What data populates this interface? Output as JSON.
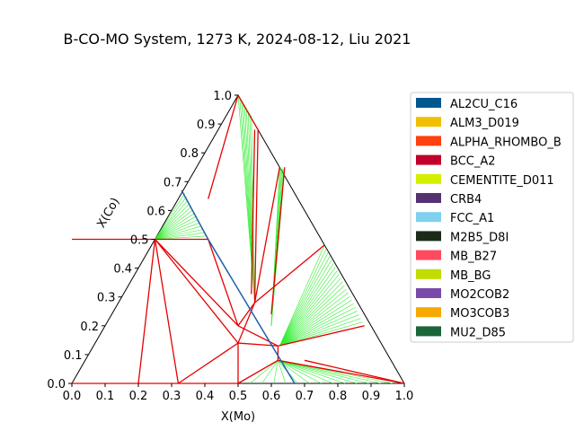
{
  "chart_data": {
    "type": "ternary",
    "title": "B-CO-MO System, 1273 K, 2024-08-12, Liu 2021",
    "xlabel": "X(Mo)",
    "ylabel": "X(Co)",
    "xlim": [
      0,
      1
    ],
    "ylim": [
      0,
      1
    ],
    "x_ticks": [
      "0.0",
      "0.1",
      "0.2",
      "0.3",
      "0.4",
      "0.5",
      "0.6",
      "0.7",
      "0.8",
      "0.9",
      "1.0"
    ],
    "y_ticks": [
      "0.0",
      "0.1",
      "0.2",
      "0.3",
      "0.4",
      "0.5",
      "0.6",
      "0.7",
      "0.8",
      "0.9",
      "1.0"
    ],
    "grid": false,
    "legend_position": "right",
    "legend": [
      {
        "name": "AL2CU_C16",
        "color": "#00568f"
      },
      {
        "name": "ALM3_D019",
        "color": "#f0c000"
      },
      {
        "name": "ALPHA_RHOMBO_B",
        "color": "#ff4010"
      },
      {
        "name": "BCC_A2",
        "color": "#c0002a"
      },
      {
        "name": "CEMENTITE_D011",
        "color": "#d4f000"
      },
      {
        "name": "CRB4",
        "color": "#543170"
      },
      {
        "name": "FCC_A1",
        "color": "#80d0f0"
      },
      {
        "name": "M2B5_D8I",
        "color": "#1c2b18"
      },
      {
        "name": "MB_B27",
        "color": "#ff4a60"
      },
      {
        "name": "MB_BG",
        "color": "#c0dc00"
      },
      {
        "name": "MO2COB2",
        "color": "#7a4aaa"
      },
      {
        "name": "MO3COB3",
        "color": "#f6a800"
      },
      {
        "name": "MU2_D85",
        "color": "#1a6638"
      }
    ],
    "phase_boundaries_red": [
      [
        [
          0.0,
          0.5
        ],
        [
          0.25,
          0.5
        ]
      ],
      [
        [
          0.25,
          0.5
        ],
        [
          0.2,
          0.0
        ]
      ],
      [
        [
          0.25,
          0.5
        ],
        [
          0.32,
          0.0
        ]
      ],
      [
        [
          0.25,
          0.5
        ],
        [
          0.5,
          0.14
        ]
      ],
      [
        [
          0.25,
          0.5
        ],
        [
          0.5,
          0.2
        ]
      ],
      [
        [
          0.25,
          0.5
        ],
        [
          0.41,
          0.5
        ]
      ],
      [
        [
          0.0,
          0.0
        ],
        [
          0.5,
          0.0
        ]
      ],
      [
        [
          0.5,
          0.0
        ],
        [
          0.5,
          0.14
        ]
      ],
      [
        [
          0.32,
          0.0
        ],
        [
          0.5,
          0.14
        ]
      ],
      [
        [
          0.5,
          0.14
        ],
        [
          0.55,
          0.28
        ]
      ],
      [
        [
          0.5,
          0.14
        ],
        [
          0.62,
          0.13
        ]
      ],
      [
        [
          0.5,
          0.2
        ],
        [
          0.62,
          0.13
        ]
      ],
      [
        [
          0.5,
          0.2
        ],
        [
          0.55,
          0.28
        ]
      ],
      [
        [
          0.41,
          0.5
        ],
        [
          0.5,
          0.2
        ]
      ],
      [
        [
          0.5,
          0.0
        ],
        [
          0.62,
          0.08
        ]
      ],
      [
        [
          0.62,
          0.08
        ],
        [
          0.62,
          0.13
        ]
      ],
      [
        [
          0.62,
          0.08
        ],
        [
          1.0,
          0.0
        ]
      ],
      [
        [
          0.7,
          0.08
        ],
        [
          1.0,
          0.0
        ]
      ],
      [
        [
          0.62,
          0.13
        ],
        [
          0.88,
          0.2
        ]
      ],
      [
        [
          0.55,
          0.28
        ],
        [
          0.76,
          0.48
        ]
      ],
      [
        [
          0.55,
          0.28
        ],
        [
          0.625,
          0.75
        ]
      ],
      [
        [
          0.6,
          0.24
        ],
        [
          0.64,
          0.75
        ]
      ],
      [
        [
          0.55,
          0.28
        ],
        [
          0.56,
          0.88
        ]
      ],
      [
        [
          0.54,
          0.31
        ],
        [
          0.55,
          0.88
        ]
      ],
      [
        [
          0.5,
          1.0
        ],
        [
          0.41,
          0.64
        ]
      ],
      [
        [
          0.5,
          1.0
        ],
        [
          0.56,
          0.88
        ]
      ]
    ],
    "phase_boundaries_blue": [
      [
        [
          0.33,
          0.67
        ],
        [
          0.41,
          0.5
        ]
      ],
      [
        [
          0.41,
          0.5
        ],
        [
          0.67,
          0.0
        ]
      ]
    ],
    "tie_line_fans": [
      {
        "apex": [
          0.25,
          0.5
        ],
        "from": [
          [
            0.34,
            0.66
          ],
          [
            0.41,
            0.5
          ]
        ],
        "count": 14
      },
      {
        "apex": [
          0.625,
          0.13
        ],
        "from": [
          [
            0.76,
            0.48
          ],
          [
            0.88,
            0.2
          ]
        ],
        "count": 22
      },
      {
        "apex": [
          0.55,
          0.28
        ],
        "from": [
          [
            0.5,
            1.0
          ],
          [
            0.54,
            0.93
          ]
        ],
        "count": 8
      },
      {
        "apex": [
          0.6,
          0.2
        ],
        "from": [
          [
            0.625,
            0.75
          ],
          [
            0.64,
            0.74
          ]
        ],
        "count": 6
      },
      {
        "apex": [
          0.62,
          0.08
        ],
        "from": [
          [
            0.5,
            0.0
          ],
          [
            1.0,
            0.0
          ]
        ],
        "count": 14
      }
    ]
  }
}
